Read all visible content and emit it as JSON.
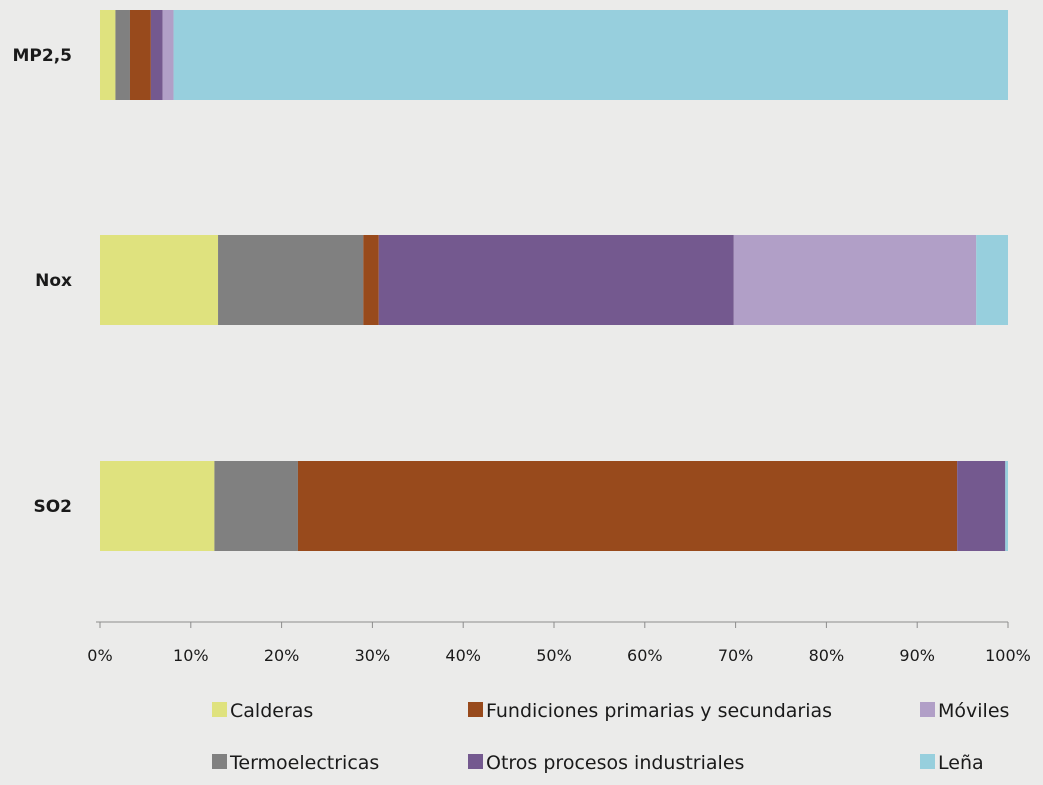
{
  "chart_data": {
    "type": "bar",
    "orientation": "horizontal",
    "stacked": true,
    "categories": [
      "MP2,5",
      "Nox",
      "SO2"
    ],
    "series": [
      {
        "name": "Calderas",
        "color": "#dfe27e",
        "values": [
          1.7,
          13.0,
          12.6
        ]
      },
      {
        "name": "Termoelectricas",
        "color": "#808080",
        "values": [
          1.6,
          16.0,
          9.2
        ]
      },
      {
        "name": "Fundiciones primarias y secundarias",
        "color": "#984a1c",
        "values": [
          2.3,
          1.7,
          72.6
        ]
      },
      {
        "name": "Otros procesos industriales",
        "color": "#74598f",
        "values": [
          1.3,
          39.1,
          5.3
        ]
      },
      {
        "name": "Móviles",
        "color": "#b19fc7",
        "values": [
          1.2,
          26.7,
          0.0
        ]
      },
      {
        "name": "Leña",
        "color": "#97cfdd",
        "values": [
          91.9,
          3.5,
          0.3
        ]
      }
    ],
    "xlim": [
      0,
      100
    ],
    "x_ticks": [
      "0%",
      "10%",
      "20%",
      "30%",
      "40%",
      "50%",
      "60%",
      "70%",
      "80%",
      "90%",
      "100%"
    ],
    "legend_position": "bottom",
    "grid": false
  }
}
